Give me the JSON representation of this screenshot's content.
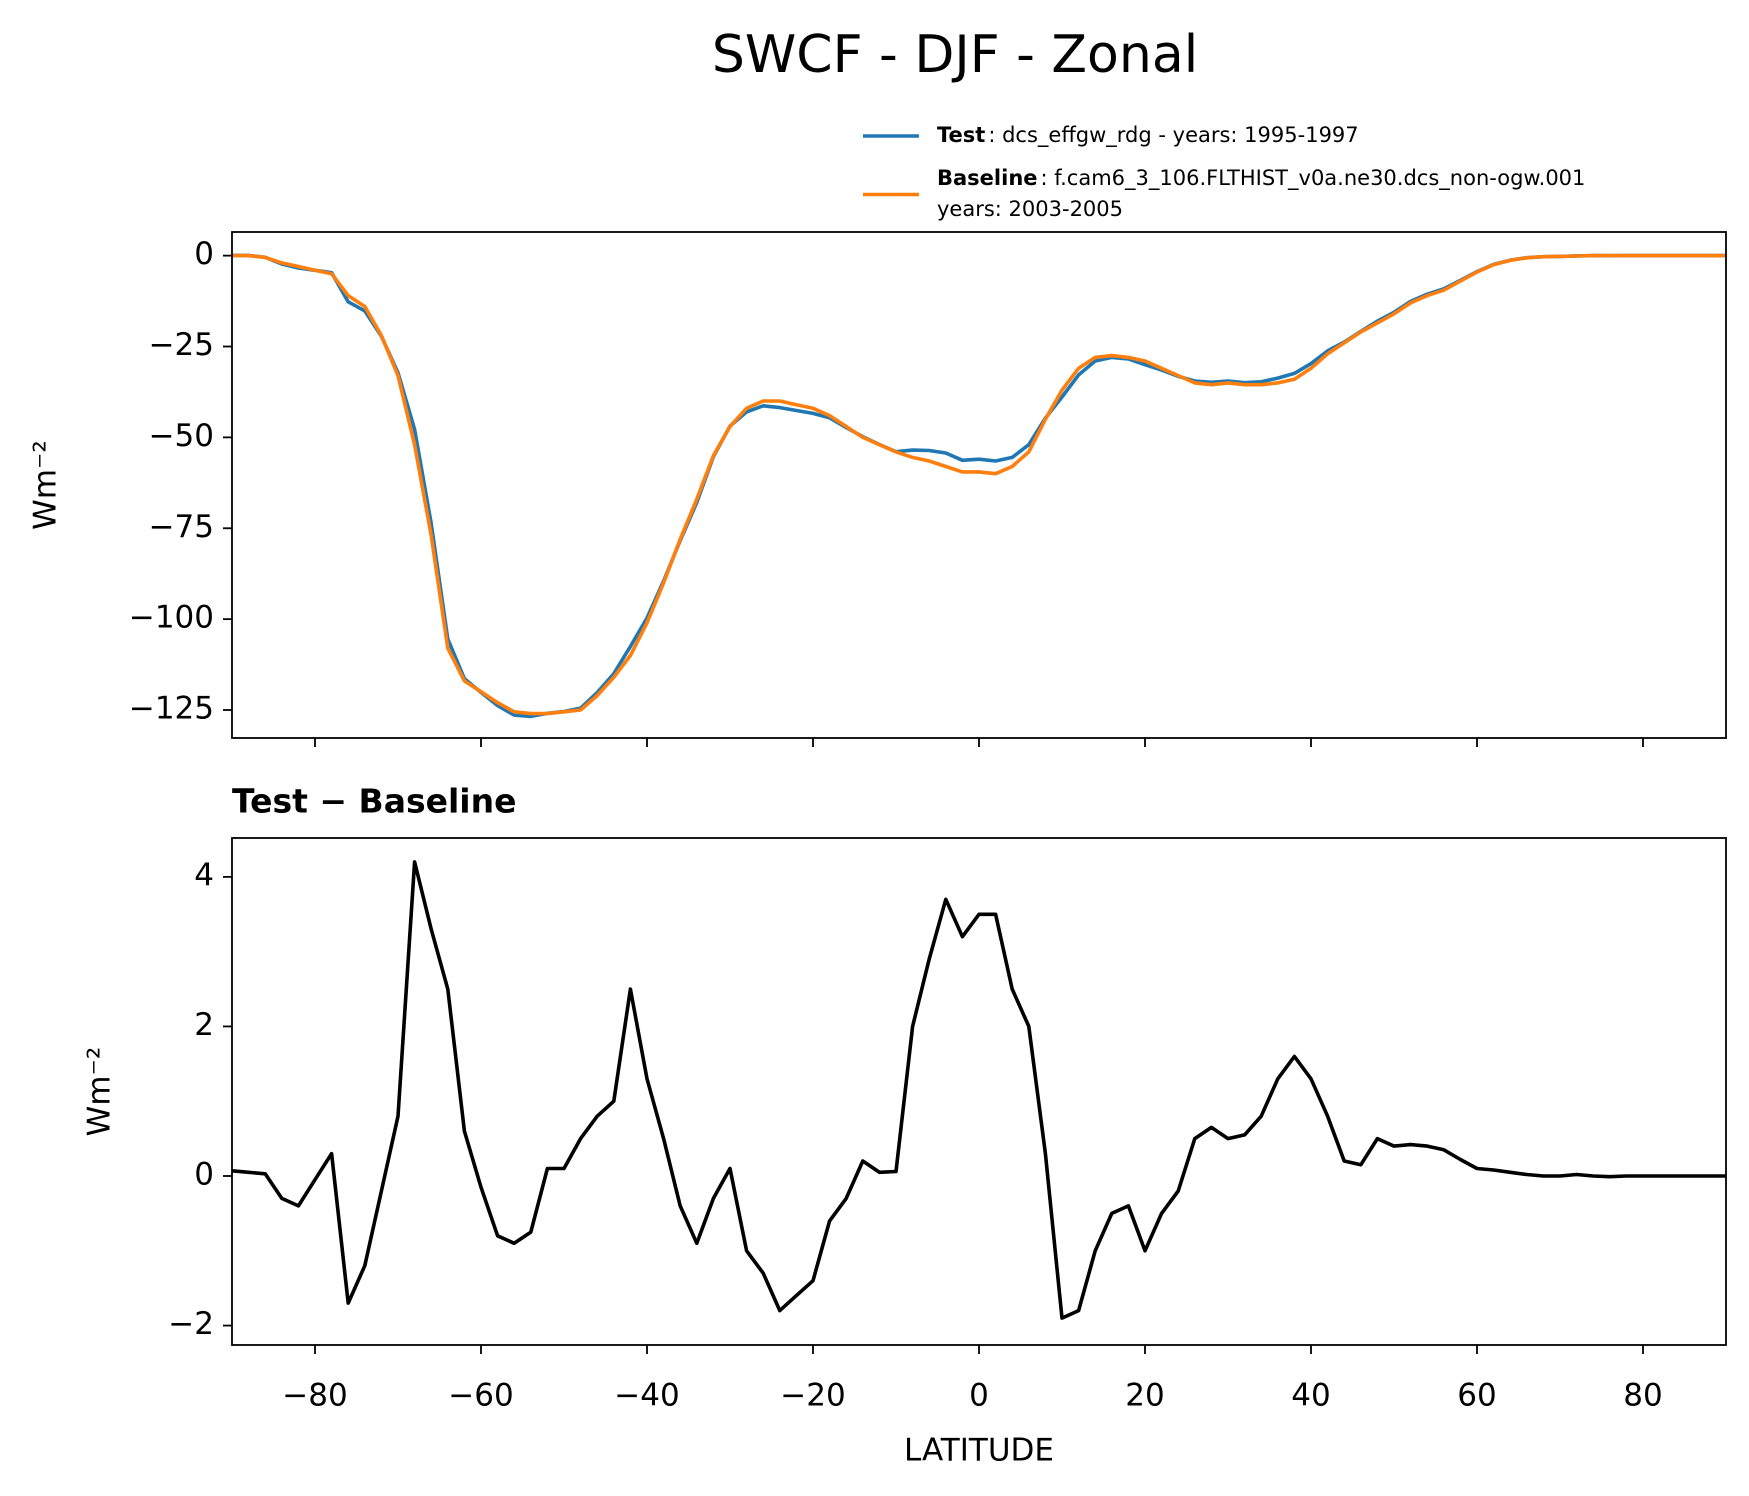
{
  "title": "SWCF - DJF - Zonal",
  "chart_data": [
    {
      "type": "line",
      "ylabel": "Wm⁻²",
      "xlim": [
        -90,
        90
      ],
      "ylim": [
        -132.7,
        6.5
      ],
      "xticks": [
        -80,
        -60,
        -40,
        -20,
        0,
        20,
        40,
        60,
        80
      ],
      "yticks": [
        0,
        {
          "value": -25,
          "label": "−25"
        },
        {
          "value": -50,
          "label": "−50"
        },
        {
          "value": -75,
          "label": "−75"
        },
        {
          "value": -100,
          "label": "−100"
        },
        {
          "value": -125,
          "label": "−125"
        }
      ],
      "x": [
        -90,
        -88,
        -86,
        -84,
        -82,
        -80,
        -78,
        -76,
        -74,
        -72,
        -70,
        -68,
        -66,
        -64,
        -62,
        -60,
        -58,
        -56,
        -54,
        -52,
        -50,
        -48,
        -46,
        -44,
        -42,
        -40,
        -38,
        -36,
        -34,
        -32,
        -30,
        -28,
        -26,
        -24,
        -22,
        -20,
        -18,
        -16,
        -14,
        -12,
        -10,
        -8,
        -6,
        -4,
        -2,
        0,
        2,
        4,
        6,
        8,
        10,
        12,
        14,
        16,
        18,
        20,
        22,
        24,
        26,
        28,
        30,
        32,
        34,
        36,
        38,
        40,
        42,
        44,
        46,
        48,
        50,
        52,
        54,
        56,
        58,
        60,
        62,
        64,
        66,
        68,
        70,
        72,
        74,
        76,
        78,
        80,
        82,
        84,
        86,
        88,
        90
      ],
      "series": [
        {
          "name": "Test",
          "description": [
            ": dcs_effgw_rdg - years: 1995-1997"
          ],
          "color": "#1f77b4",
          "values": [
            0.07,
            0.05,
            -0.47,
            -2.3,
            -3.4,
            -4.05,
            -4.7,
            -12.7,
            -15.2,
            -22.2,
            -32.2,
            -47.8,
            -73.7,
            -105.5,
            -116.4,
            -120.15,
            -123.8,
            -126.4,
            -126.75,
            -125.9,
            -125.4,
            -124.5,
            -120.2,
            -115,
            -107.5,
            -99.7,
            -89.5,
            -78.4,
            -67.9,
            -55.3,
            -46.9,
            -43,
            -41.3,
            -41.8,
            -42.6,
            -43.4,
            -44.6,
            -47.3,
            -49.8,
            -51.95,
            -53.94,
            -53.5,
            -53.6,
            -54.3,
            -56.3,
            -56,
            -56.5,
            -55.5,
            -52,
            -44.7,
            -38.9,
            -32.8,
            -29,
            -28,
            -28.4,
            -30,
            -31.5,
            -33.2,
            -34.5,
            -34.85,
            -34.5,
            -34.95,
            -34.7,
            -33.7,
            -32.4,
            -29.7,
            -26.2,
            -23.8,
            -20.85,
            -18,
            -15.6,
            -12.58,
            -10.6,
            -9.15,
            -6.78,
            -4.4,
            -2.42,
            -1.25,
            -0.58,
            -0.3,
            -0.2,
            -0.08,
            0,
            -0.01,
            0,
            0,
            0,
            0,
            0,
            0,
            0
          ]
        },
        {
          "name": "Baseline",
          "description": [
            ": f.cam6_3_106.FLTHIST_v0a.ne30.dcs_non-ogw.001",
            "years: 2003-2005"
          ],
          "color": "#ff7f0e",
          "values": [
            0,
            0,
            -0.5,
            -2,
            -3,
            -4,
            -5,
            -11,
            -14,
            -22,
            -33,
            -52,
            -77,
            -108,
            -117,
            -120,
            -123,
            -125.5,
            -126,
            -126,
            -125.5,
            -125,
            -121,
            -116,
            -110,
            -101,
            -90,
            -78,
            -67,
            -55,
            -47,
            -42,
            -40,
            -40,
            -41,
            -42,
            -44,
            -47,
            -50,
            -52,
            -54,
            -55.5,
            -56.5,
            -58,
            -59.5,
            -59.5,
            -60,
            -58,
            -54,
            -45,
            -37,
            -31,
            -28,
            -27.5,
            -28,
            -29,
            -31,
            -33,
            -35,
            -35.5,
            -35,
            -35.5,
            -35.5,
            -35,
            -34,
            -31,
            -27,
            -24,
            -21,
            -18.5,
            -16,
            -13,
            -11,
            -9.5,
            -7,
            -4.5,
            -2.5,
            -1.3,
            -0.6,
            -0.3,
            -0.2,
            -0.1,
            0,
            0,
            0,
            0,
            0,
            0,
            0,
            0,
            0
          ]
        }
      ]
    },
    {
      "type": "line",
      "title": "Test − Baseline",
      "ylabel": "Wm⁻²",
      "xlabel": "LATITUDE",
      "xlim": [
        -90,
        90
      ],
      "ylim": [
        -2.26,
        4.52
      ],
      "xticks": [
        {
          "value": -80,
          "label": "−80"
        },
        {
          "value": -60,
          "label": "−60"
        },
        {
          "value": -40,
          "label": "−40"
        },
        {
          "value": -20,
          "label": "−20"
        },
        0,
        20,
        40,
        60,
        80
      ],
      "yticks": [
        {
          "value": -2,
          "label": "−2"
        },
        0,
        2,
        4
      ],
      "x": [
        -90,
        -88,
        -86,
        -84,
        -82,
        -80,
        -78,
        -76,
        -74,
        -72,
        -70,
        -68,
        -66,
        -64,
        -62,
        -60,
        -58,
        -56,
        -54,
        -52,
        -50,
        -48,
        -46,
        -44,
        -42,
        -40,
        -38,
        -36,
        -34,
        -32,
        -30,
        -28,
        -26,
        -24,
        -22,
        -20,
        -18,
        -16,
        -14,
        -12,
        -10,
        -8,
        -6,
        -4,
        -2,
        0,
        2,
        4,
        6,
        8,
        10,
        12,
        14,
        16,
        18,
        20,
        22,
        24,
        26,
        28,
        30,
        32,
        34,
        36,
        38,
        40,
        42,
        44,
        46,
        48,
        50,
        52,
        54,
        56,
        58,
        60,
        62,
        64,
        66,
        68,
        70,
        72,
        74,
        76,
        78,
        80,
        82,
        84,
        86,
        88,
        90
      ],
      "color": "#000000",
      "values": [
        0.07,
        0.05,
        0.03,
        -0.3,
        -0.4,
        -0.05,
        0.3,
        -1.7,
        -1.2,
        -0.2,
        0.8,
        4.2,
        3.3,
        2.5,
        0.6,
        -0.15,
        -0.8,
        -0.9,
        -0.75,
        0.1,
        0.1,
        0.5,
        0.8,
        1.0,
        2.5,
        1.3,
        0.5,
        -0.4,
        -0.9,
        -0.3,
        0.1,
        -1.0,
        -1.3,
        -1.8,
        -1.6,
        -1.4,
        -0.6,
        -0.3,
        0.2,
        0.05,
        0.06,
        2.0,
        2.9,
        3.7,
        3.2,
        3.5,
        3.5,
        2.5,
        2.0,
        0.3,
        -1.9,
        -1.8,
        -1.0,
        -0.5,
        -0.4,
        -1.0,
        -0.5,
        -0.2,
        0.5,
        0.65,
        0.5,
        0.55,
        0.8,
        1.3,
        1.6,
        1.3,
        0.8,
        0.2,
        0.15,
        0.5,
        0.4,
        0.42,
        0.4,
        0.35,
        0.22,
        0.1,
        0.08,
        0.05,
        0.02,
        0,
        0,
        0.02,
        0,
        -0.01,
        0,
        0,
        0,
        0,
        0,
        0,
        0
      ]
    }
  ]
}
